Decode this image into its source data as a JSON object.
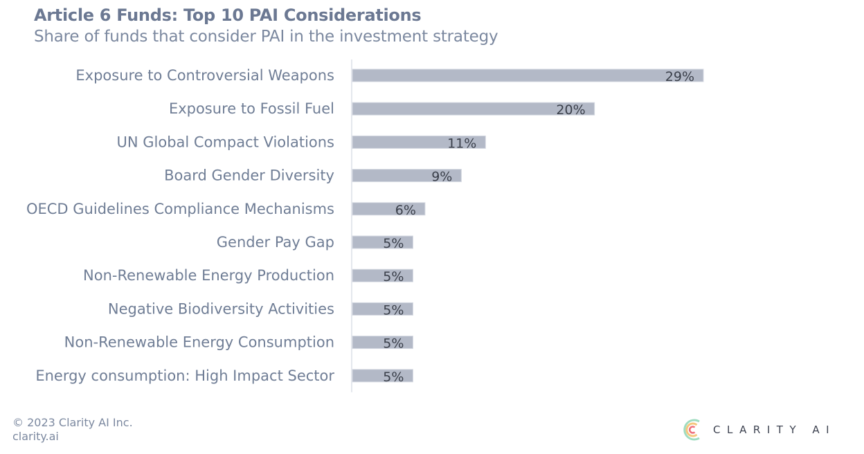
{
  "header": {
    "title": "Article 6 Funds: Top 10 PAI Considerations",
    "subtitle": "Share of funds that consider PAI in the investment strategy"
  },
  "chart_data": {
    "type": "bar",
    "orientation": "horizontal",
    "title": "Article 6 Funds: Top 10 PAI Considerations",
    "subtitle": "Share of funds that consider PAI in the investment strategy",
    "xlabel": "",
    "ylabel": "",
    "unit": "%",
    "xlim": [
      0,
      29
    ],
    "grid": false,
    "categories": [
      "Exposure to Controversial Weapons",
      "Exposure to Fossil Fuel",
      "UN Global Compact Violations",
      "Board Gender Diversity",
      "OECD Guidelines Compliance Mechanisms",
      "Gender Pay Gap",
      "Non-Renewable Energy Production",
      "Negative Biodiversity Activities",
      "Non-Renewable Energy Consumption",
      "Energy consumption: High Impact Sector"
    ],
    "values": [
      29,
      20,
      11,
      9,
      6,
      5,
      5,
      5,
      5,
      5
    ],
    "value_labels": [
      "29%",
      "20%",
      "11%",
      "9%",
      "6%",
      "5%",
      "5%",
      "5%",
      "5%",
      "5%"
    ],
    "colors": {
      "bar": "#b3b9c7",
      "bar_edge": "#d3d7e0",
      "axis": "#e4e7ed"
    }
  },
  "footer": {
    "copyright": "© 2023 Clarity AI Inc.",
    "website": "clarity.ai"
  },
  "logo": {
    "text": "CLARITY AI",
    "colors": {
      "outer": "#9fdcc0",
      "middle": "#f5c77e",
      "inner": "#ef6f7b"
    }
  }
}
